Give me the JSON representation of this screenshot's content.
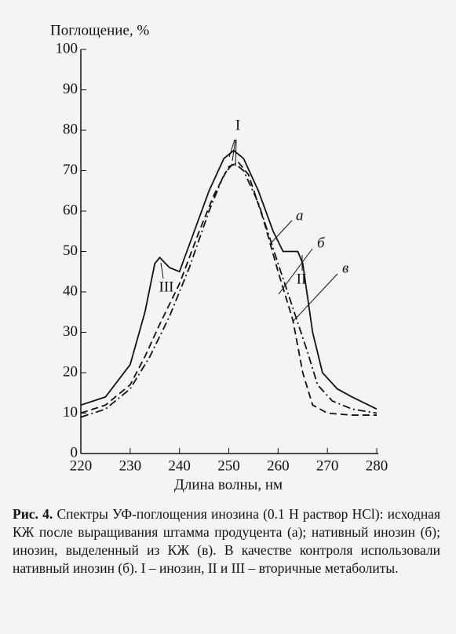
{
  "chart_data": {
    "type": "line",
    "ylabel": "Поглощение, %",
    "xlabel": "Длина волны, нм",
    "xlim": [
      220,
      280
    ],
    "xticks": [
      220,
      230,
      240,
      250,
      260,
      270,
      280
    ],
    "ylim": [
      0,
      100
    ],
    "yticks": [
      0,
      10,
      20,
      30,
      40,
      50,
      60,
      70,
      80,
      90,
      100
    ],
    "series": [
      {
        "name": "а",
        "color": "#111111",
        "style": "solid",
        "x": [
          220,
          225,
          230,
          233,
          235,
          236,
          238,
          240,
          243,
          246,
          249,
          251,
          253,
          256,
          259,
          261,
          263,
          264,
          265,
          267,
          269,
          272,
          275,
          280
        ],
        "values": [
          12,
          14,
          22,
          35,
          47,
          48.5,
          46,
          45,
          55,
          65,
          73,
          75,
          73,
          65,
          55,
          50,
          50,
          50,
          47,
          30,
          20,
          16,
          14,
          11
        ]
      },
      {
        "name": "б",
        "color": "#111111",
        "style": "dashed",
        "x": [
          220,
          225,
          230,
          233,
          236,
          240,
          244,
          247,
          250,
          252,
          254,
          257,
          260,
          263,
          265,
          267,
          270,
          275,
          280
        ],
        "values": [
          10,
          12,
          17,
          24,
          32,
          42,
          55,
          64,
          71,
          72,
          69,
          58,
          45,
          33,
          20,
          12,
          10,
          9.5,
          9.5
        ]
      },
      {
        "name": "в",
        "color": "#111111",
        "style": "dashdot",
        "x": [
          220,
          225,
          230,
          234,
          238,
          242,
          246,
          249,
          251,
          253,
          256,
          260,
          263,
          266,
          268,
          271,
          275,
          280
        ],
        "values": [
          9,
          11,
          16,
          24,
          34,
          46,
          60,
          69,
          72,
          70,
          62,
          47,
          36,
          25,
          17,
          13,
          11,
          10
        ]
      }
    ],
    "annotations": [
      "I",
      "II",
      "III"
    ]
  },
  "caption": {
    "label": "Рис. 4.",
    "text": "Спектры УФ-поглощения инозина (0.1 Н раствор HCl): исходная КЖ после выращивания штамма продуцента (а); нативный инозин (б); инозин, выделенный из КЖ (в). В качестве контроля использовали нативный инозин (б). I – инозин, II и III – вторичные метаболиты."
  }
}
